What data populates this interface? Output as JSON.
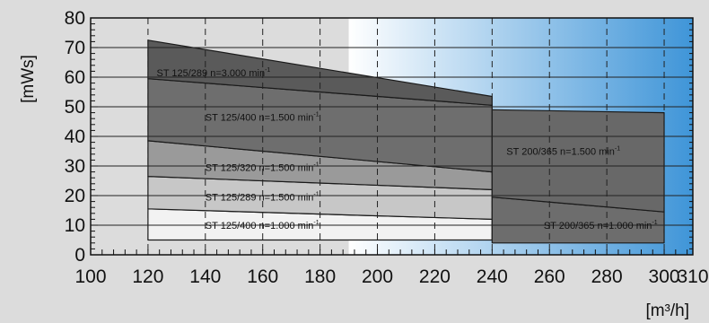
{
  "chart_data": {
    "type": "area",
    "xlabel": "[m³/h]",
    "ylabel": "[mWs]",
    "xlim": [
      100,
      310
    ],
    "ylim": [
      0,
      80
    ],
    "x_ticks": [
      100,
      120,
      140,
      160,
      180,
      200,
      220,
      240,
      260,
      280,
      300,
      310
    ],
    "y_ticks": [
      0,
      10,
      20,
      30,
      40,
      50,
      60,
      70,
      80
    ],
    "grid": "dashed-vertical-and-solid-horizontal",
    "background_gradient": {
      "start_x": 190,
      "end_x": 310,
      "from": "#ffffff",
      "to": "#3f95d8"
    },
    "colors": {
      "page_bg": "#dcdcdc",
      "plot_bg": "#dcdcdc",
      "dark": "#5a5a5a",
      "mid_dark": "#6e6e6e",
      "mid": "#9a9a9a",
      "light": "#c7c7c7",
      "lightest": "#f2f2f2",
      "right_upper": "#686868",
      "right_lower": "#6d6d6d"
    },
    "series": [
      {
        "name": "ST 125/400 n=1.000 min",
        "sup": "-1",
        "polygon": [
          [
            120,
            5
          ],
          [
            240,
            5
          ],
          [
            240,
            12
          ],
          [
            120,
            15.5
          ]
        ],
        "color_key": "lightest",
        "label_at": [
          140,
          10
        ]
      },
      {
        "name": "ST 125/289 n=1.500 min",
        "sup": "-1",
        "polygon": [
          [
            120,
            15.5
          ],
          [
            240,
            12
          ],
          [
            240,
            22
          ],
          [
            120,
            26.5
          ]
        ],
        "color_key": "light",
        "label_at": [
          140,
          19.5
        ]
      },
      {
        "name": "ST 125/320 n=1.500 min",
        "sup": "-1",
        "polygon": [
          [
            120,
            26.5
          ],
          [
            240,
            22
          ],
          [
            240,
            28
          ],
          [
            120,
            38.5
          ]
        ],
        "color_key": "mid",
        "label_at": [
          140,
          29.5
        ]
      },
      {
        "name": "ST 125/400 n=1.500 min",
        "sup": "-1",
        "polygon": [
          [
            120,
            38.5
          ],
          [
            240,
            28
          ],
          [
            240,
            50.5
          ],
          [
            120,
            59.5
          ]
        ],
        "color_key": "mid_dark",
        "label_at": [
          140,
          46.5
        ]
      },
      {
        "name": "ST 125/289 n=3.000 min",
        "sup": "-1",
        "polygon": [
          [
            120,
            59.5
          ],
          [
            240,
            50.5
          ],
          [
            240,
            53.5
          ],
          [
            120,
            72.5
          ]
        ],
        "color_key": "dark",
        "label_at": [
          123,
          61.5
        ]
      },
      {
        "name": "ST 200/365 n=1.000 min",
        "sup": "-1",
        "polygon": [
          [
            240,
            4
          ],
          [
            300,
            4
          ],
          [
            300,
            14.5
          ],
          [
            240,
            19.5
          ]
        ],
        "color_key": "right_lower",
        "label_at": [
          258,
          10
        ]
      },
      {
        "name": "ST 200/365 n=1.500 min",
        "sup": "-1",
        "polygon": [
          [
            240,
            19.5
          ],
          [
            300,
            14.5
          ],
          [
            300,
            48
          ],
          [
            240,
            49
          ]
        ],
        "color_key": "right_upper",
        "label_at": [
          245,
          35
        ]
      }
    ]
  }
}
